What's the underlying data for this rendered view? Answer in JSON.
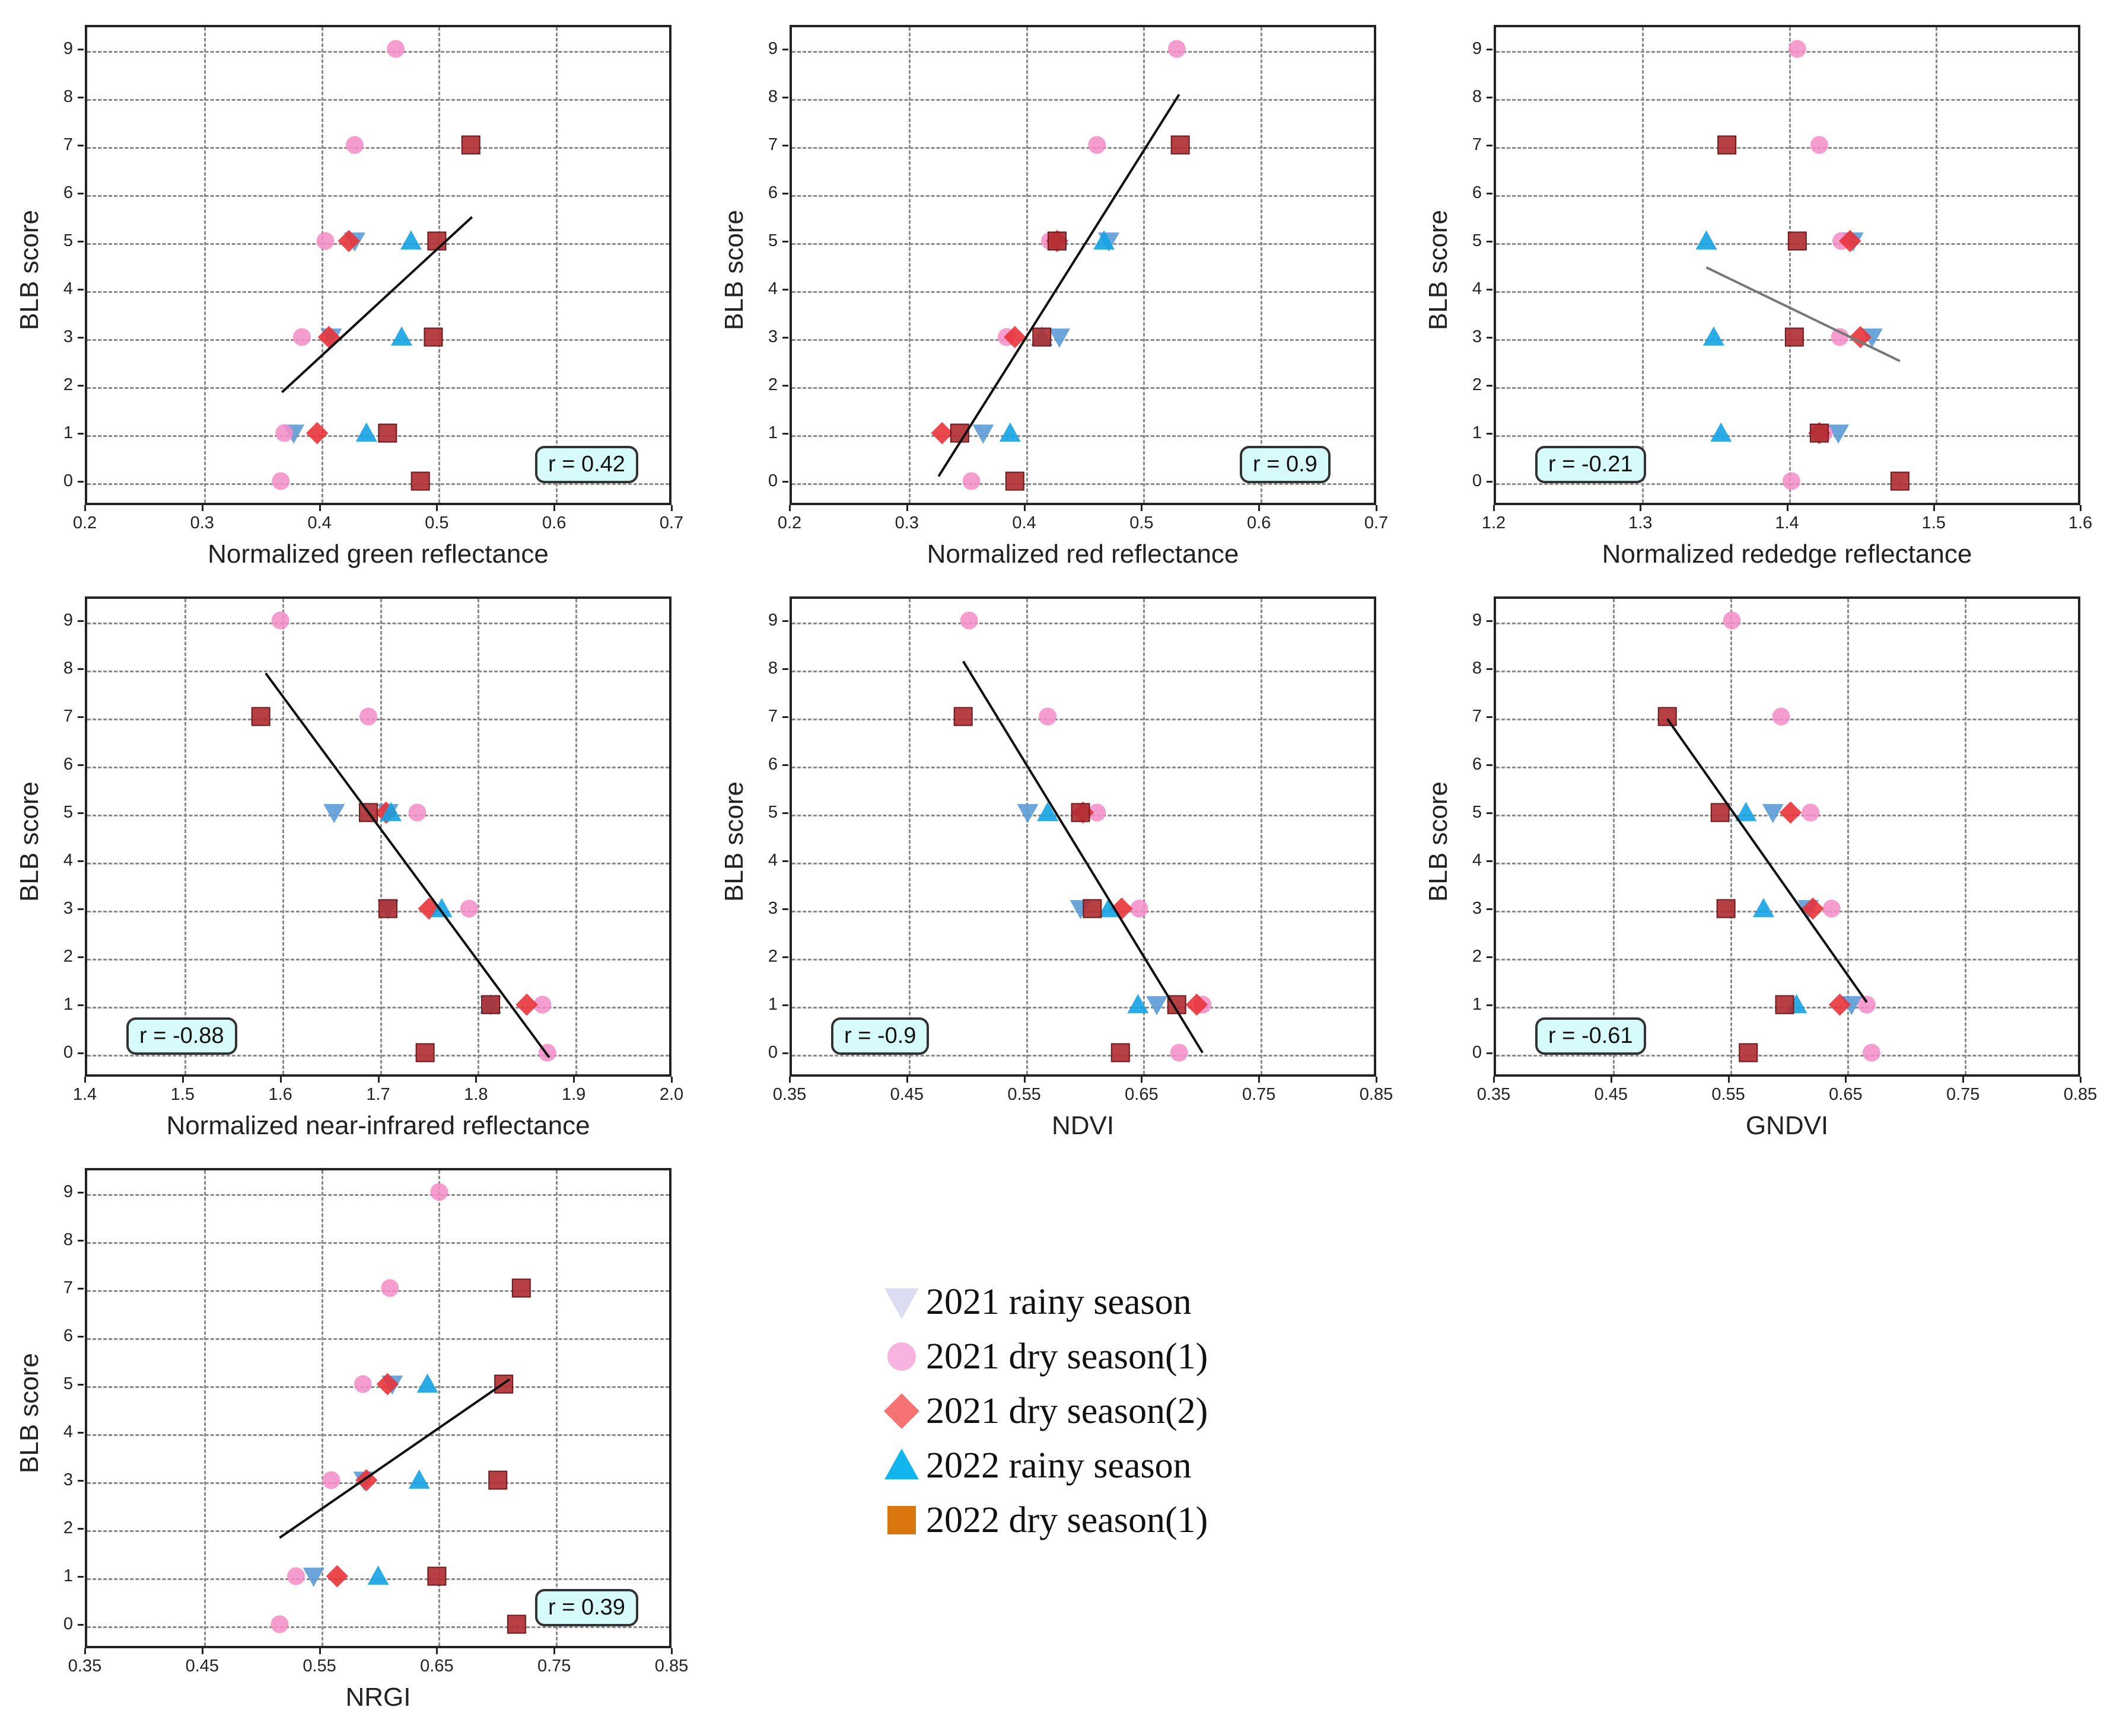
{
  "figure": {
    "legend": [
      {
        "key": "r21",
        "label": "2021 rainy season",
        "marker": "triangle-down",
        "color": "#dcdcf2"
      },
      {
        "key": "d21a",
        "label": "2021 dry season(1)",
        "marker": "circle",
        "color": "#f8b4e0"
      },
      {
        "key": "d21b",
        "label": "2021 dry season(2)",
        "marker": "diamond",
        "color": "#f77272"
      },
      {
        "key": "r22",
        "label": "2022 rainy season",
        "marker": "triangle-up",
        "color": "#12b5ee"
      },
      {
        "key": "d22",
        "label": "2022 dry season(1)",
        "marker": "square",
        "color": "#d9760e"
      }
    ],
    "plot_colors": {
      "r21": "#5b9bd5",
      "d21a": "#f48cc8",
      "d21b": "#e8343a",
      "r22": "#15a3e3",
      "d22": "#b03034"
    }
  },
  "chart_data": [
    {
      "id": "green",
      "type": "scatter",
      "xlabel": "Normalized green reflectance",
      "ylabel": "BLB score",
      "xlim": [
        0.2,
        0.7
      ],
      "xticks": [
        "0.2",
        "0.3",
        "0.4",
        "0.5",
        "0.6",
        "0.7"
      ],
      "ylim": [
        -0.5,
        9.5
      ],
      "yticks": [
        "0",
        "1",
        "2",
        "3",
        "4",
        "5",
        "6",
        "7",
        "8",
        "9"
      ],
      "corr": "r = 0.42",
      "corr_position": "bottom-right",
      "fit": {
        "x": [
          0.368,
          0.53
        ],
        "y": [
          1.85,
          5.5
        ]
      },
      "series": [
        {
          "key": "r21",
          "points": [
            [
              0.378,
              1
            ],
            [
              0.41,
              3
            ],
            [
              0.43,
              5
            ]
          ]
        },
        {
          "key": "d21a",
          "points": [
            [
              0.367,
              0
            ],
            [
              0.37,
              1
            ],
            [
              0.385,
              3
            ],
            [
              0.405,
              5
            ],
            [
              0.43,
              7
            ],
            [
              0.465,
              9
            ]
          ]
        },
        {
          "key": "d21b",
          "points": [
            [
              0.398,
              1
            ],
            [
              0.408,
              3
            ],
            [
              0.425,
              5
            ]
          ]
        },
        {
          "key": "r22",
          "points": [
            [
              0.44,
              1
            ],
            [
              0.47,
              3
            ],
            [
              0.478,
              5
            ]
          ]
        },
        {
          "key": "d22",
          "points": [
            [
              0.458,
              1
            ],
            [
              0.486,
              0
            ],
            [
              0.497,
              3
            ],
            [
              0.5,
              5
            ],
            [
              0.529,
              7
            ]
          ]
        }
      ]
    },
    {
      "id": "red",
      "type": "scatter",
      "xlabel": "Normalized red reflectance",
      "ylabel": "BLB score",
      "xlim": [
        0.2,
        0.7
      ],
      "xticks": [
        "0.2",
        "0.3",
        "0.4",
        "0.5",
        "0.6",
        "0.7"
      ],
      "ylim": [
        -0.5,
        9.5
      ],
      "yticks": [
        "0",
        "1",
        "2",
        "3",
        "4",
        "5",
        "6",
        "7",
        "8",
        "9"
      ],
      "corr": "r = 0.9",
      "corr_position": "bottom-right",
      "fit": {
        "x": [
          0.327,
          0.532
        ],
        "y": [
          0.1,
          8.05
        ]
      },
      "series": [
        {
          "key": "r21",
          "points": [
            [
              0.365,
              1
            ],
            [
              0.43,
              3
            ],
            [
              0.472,
              5
            ]
          ]
        },
        {
          "key": "d21a",
          "points": [
            [
              0.355,
              0
            ],
            [
              0.385,
              3
            ],
            [
              0.422,
              5
            ],
            [
              0.462,
              7
            ],
            [
              0.53,
              9
            ]
          ]
        },
        {
          "key": "d21b",
          "points": [
            [
              0.33,
              1
            ],
            [
              0.392,
              3
            ],
            [
              0.428,
              5
            ]
          ]
        },
        {
          "key": "r22",
          "points": [
            [
              0.388,
              1
            ],
            [
              0.415,
              3
            ],
            [
              0.468,
              5
            ]
          ]
        },
        {
          "key": "d22",
          "points": [
            [
              0.345,
              1
            ],
            [
              0.392,
              0
            ],
            [
              0.415,
              3
            ],
            [
              0.428,
              5
            ],
            [
              0.533,
              7
            ]
          ]
        }
      ]
    },
    {
      "id": "rededge",
      "type": "scatter",
      "xlabel": "Normalized rededge reflectance",
      "ylabel": "BLB score",
      "xlim": [
        1.2,
        1.6
      ],
      "xticks": [
        "1.2",
        "1.3",
        "1.4",
        "1.5",
        "1.6"
      ],
      "ylim": [
        -0.5,
        9.5
      ],
      "yticks": [
        "0",
        "1",
        "2",
        "3",
        "4",
        "5",
        "6",
        "7",
        "8",
        "9"
      ],
      "corr": "r = -0.21",
      "corr_position": "bottom-left",
      "fit": {
        "x": [
          1.345,
          1.477
        ],
        "y": [
          4.45,
          2.5
        ]
      },
      "series": [
        {
          "key": "r21",
          "points": [
            [
              1.435,
              1
            ],
            [
              1.458,
              3
            ],
            [
              1.445,
              5
            ]
          ]
        },
        {
          "key": "d21a",
          "points": [
            [
              1.403,
              0
            ],
            [
              1.425,
              1
            ],
            [
              1.436,
              3
            ],
            [
              1.437,
              5
            ],
            [
              1.422,
              7
            ],
            [
              1.407,
              9
            ]
          ]
        },
        {
          "key": "d21b",
          "points": [
            [
              1.422,
              1
            ],
            [
              1.45,
              3
            ],
            [
              1.443,
              5
            ]
          ]
        },
        {
          "key": "r22",
          "points": [
            [
              1.355,
              1
            ],
            [
              1.35,
              3
            ],
            [
              1.345,
              5
            ]
          ]
        },
        {
          "key": "d22",
          "points": [
            [
              1.422,
              1
            ],
            [
              1.477,
              0
            ],
            [
              1.405,
              3
            ],
            [
              1.407,
              5
            ],
            [
              1.359,
              7
            ]
          ]
        }
      ]
    },
    {
      "id": "nir",
      "type": "scatter",
      "xlabel": "Normalized near-infrared reflectance",
      "ylabel": "BLB score",
      "xlim": [
        1.4,
        2.0
      ],
      "xticks": [
        "1.4",
        "1.5",
        "1.6",
        "1.7",
        "1.8",
        "1.9",
        "2.0"
      ],
      "ylim": [
        -0.5,
        9.5
      ],
      "yticks": [
        "0",
        "1",
        "2",
        "3",
        "4",
        "5",
        "6",
        "7",
        "8",
        "9"
      ],
      "corr": "r = -0.88",
      "corr_position": "bottom-left",
      "fit": {
        "x": [
          1.585,
          1.875
        ],
        "y": [
          7.9,
          -0.1
        ]
      },
      "series": [
        {
          "key": "r21",
          "points": [
            [
              1.815,
              1
            ],
            [
              1.71,
              3
            ],
            [
              1.655,
              5
            ],
            [
              1.71,
              5
            ]
          ]
        },
        {
          "key": "d21a",
          "points": [
            [
              1.873,
              0
            ],
            [
              1.868,
              1
            ],
            [
              1.793,
              3
            ],
            [
              1.74,
              5
            ],
            [
              1.69,
              7
            ],
            [
              1.6,
              9
            ]
          ]
        },
        {
          "key": "d21b",
          "points": [
            [
              1.852,
              1
            ],
            [
              1.752,
              3
            ],
            [
              1.708,
              5
            ]
          ]
        },
        {
          "key": "r22",
          "points": [
            [
              1.815,
              1
            ],
            [
              1.765,
              3
            ],
            [
              1.713,
              5
            ]
          ]
        },
        {
          "key": "d22",
          "points": [
            [
              1.815,
              1
            ],
            [
              1.748,
              0
            ],
            [
              1.71,
              3
            ],
            [
              1.69,
              5
            ],
            [
              1.58,
              7
            ]
          ]
        }
      ]
    },
    {
      "id": "ndvi",
      "type": "scatter",
      "xlabel": "NDVI",
      "ylabel": "BLB score",
      "xlim": [
        0.35,
        0.85
      ],
      "xticks": [
        "0.35",
        "0.45",
        "0.55",
        "0.65",
        "0.75",
        "0.85"
      ],
      "ylim": [
        -0.5,
        9.5
      ],
      "yticks": [
        "0",
        "1",
        "2",
        "3",
        "4",
        "5",
        "6",
        "7",
        "8",
        "9"
      ],
      "corr": "r = -0.9",
      "corr_position": "bottom-left",
      "fit": {
        "x": [
          0.498,
          0.702
        ],
        "y": [
          8.15,
          0.0
        ]
      },
      "series": [
        {
          "key": "r21",
          "points": [
            [
              0.663,
              1
            ],
            [
              0.598,
              3
            ],
            [
              0.553,
              5
            ]
          ]
        },
        {
          "key": "d21a",
          "points": [
            [
              0.682,
              0
            ],
            [
              0.702,
              1
            ],
            [
              0.648,
              3
            ],
            [
              0.612,
              5
            ],
            [
              0.57,
              7
            ],
            [
              0.503,
              9
            ]
          ]
        },
        {
          "key": "d21b",
          "points": [
            [
              0.697,
              1
            ],
            [
              0.633,
              3
            ],
            [
              0.6,
              5
            ]
          ]
        },
        {
          "key": "r22",
          "points": [
            [
              0.647,
              1
            ],
            [
              0.622,
              3
            ],
            [
              0.57,
              5
            ]
          ]
        },
        {
          "key": "d22",
          "points": [
            [
              0.68,
              1
            ],
            [
              0.632,
              0
            ],
            [
              0.608,
              3
            ],
            [
              0.598,
              5
            ],
            [
              0.498,
              7
            ]
          ]
        }
      ]
    },
    {
      "id": "gndvi",
      "type": "scatter",
      "xlabel": "GNDVI",
      "ylabel": "BLB score",
      "xlim": [
        0.35,
        0.85
      ],
      "xticks": [
        "0.35",
        "0.45",
        "0.55",
        "0.65",
        "0.75",
        "0.85"
      ],
      "ylim": [
        -0.5,
        9.5
      ],
      "yticks": [
        "0",
        "1",
        "2",
        "3",
        "4",
        "5",
        "6",
        "7",
        "8",
        "9"
      ],
      "corr": "r = -0.61",
      "corr_position": "bottom-left",
      "fit": {
        "x": [
          0.498,
          0.668
        ],
        "y": [
          6.95,
          1.05
        ]
      },
      "series": [
        {
          "key": "r21",
          "points": [
            [
              0.655,
              1
            ],
            [
              0.618,
              3
            ],
            [
              0.588,
              5
            ]
          ]
        },
        {
          "key": "d21a",
          "points": [
            [
              0.672,
              0
            ],
            [
              0.668,
              1
            ],
            [
              0.638,
              3
            ],
            [
              0.62,
              5
            ],
            [
              0.595,
              7
            ],
            [
              0.553,
              9
            ]
          ]
        },
        {
          "key": "d21b",
          "points": [
            [
              0.645,
              1
            ],
            [
              0.622,
              3
            ],
            [
              0.603,
              5
            ]
          ]
        },
        {
          "key": "r22",
          "points": [
            [
              0.608,
              1
            ],
            [
              0.58,
              3
            ],
            [
              0.565,
              5
            ]
          ]
        },
        {
          "key": "d22",
          "points": [
            [
              0.598,
              1
            ],
            [
              0.567,
              0
            ],
            [
              0.548,
              3
            ],
            [
              0.543,
              5
            ],
            [
              0.498,
              7
            ]
          ]
        }
      ]
    },
    {
      "id": "nrgi",
      "type": "scatter",
      "xlabel": "NRGI",
      "ylabel": "BLB score",
      "xlim": [
        0.35,
        0.85
      ],
      "xticks": [
        "0.35",
        "0.45",
        "0.55",
        "0.65",
        "0.75",
        "0.85"
      ],
      "ylim": [
        -0.5,
        9.5
      ],
      "yticks": [
        "0",
        "1",
        "2",
        "3",
        "4",
        "5",
        "6",
        "7",
        "8",
        "9"
      ],
      "corr": "r = 0.39",
      "corr_position": "bottom-right",
      "fit": {
        "x": [
          0.516,
          0.712
        ],
        "y": [
          1.8,
          5.1
        ]
      },
      "series": [
        {
          "key": "r21",
          "points": [
            [
              0.545,
              1
            ],
            [
              0.588,
              3
            ],
            [
              0.612,
              5
            ]
          ]
        },
        {
          "key": "d21a",
          "points": [
            [
              0.516,
              0
            ],
            [
              0.53,
              1
            ],
            [
              0.56,
              3
            ],
            [
              0.587,
              5
            ],
            [
              0.61,
              7
            ],
            [
              0.652,
              9
            ]
          ]
        },
        {
          "key": "d21b",
          "points": [
            [
              0.565,
              1
            ],
            [
              0.59,
              3
            ],
            [
              0.608,
              5
            ]
          ]
        },
        {
          "key": "r22",
          "points": [
            [
              0.6,
              1
            ],
            [
              0.635,
              3
            ],
            [
              0.642,
              5
            ]
          ]
        },
        {
          "key": "d22",
          "points": [
            [
              0.65,
              1
            ],
            [
              0.718,
              0
            ],
            [
              0.702,
              3
            ],
            [
              0.707,
              5
            ],
            [
              0.722,
              7
            ]
          ]
        }
      ]
    }
  ]
}
